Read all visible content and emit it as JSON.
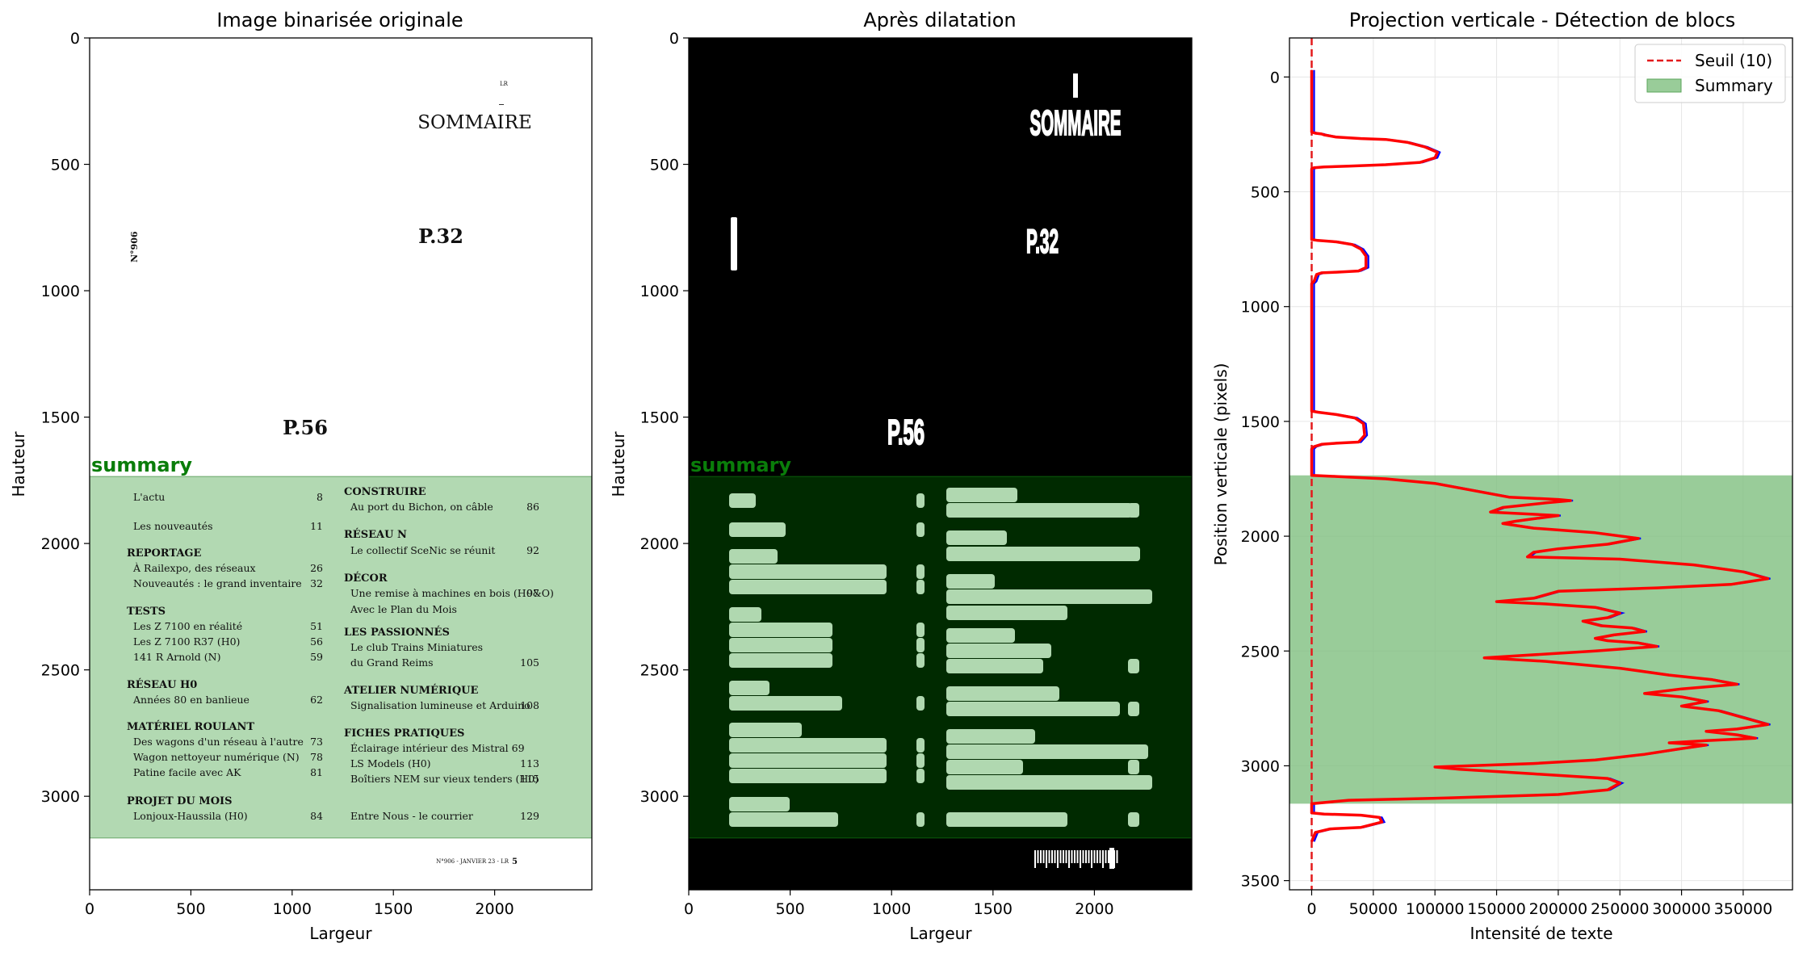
{
  "chart_data": [
    {
      "type": "image",
      "title": "Image binarisée originale",
      "xlabel": "Largeur",
      "ylabel": "Hauteur",
      "xlim": [
        0,
        2480
      ],
      "ylim": [
        3370,
        0
      ],
      "xticks": [
        0,
        500,
        1000,
        1500,
        2000
      ],
      "yticks": [
        0,
        500,
        1000,
        1500,
        2000,
        2500,
        3000
      ],
      "region": {
        "label": "summary",
        "y0": 1735,
        "y1": 3165,
        "color": "#b2d9b2"
      },
      "page_text": {
        "header_small": "LR",
        "sommaire": "SOMMAIRE",
        "issue_vertical": "N°906",
        "p32": "P.32",
        "p56": "P.56",
        "footer": "N°906 - JANVIER 23 - LR",
        "footer_page": "5"
      },
      "toc_left": [
        {
          "text": "L'actu",
          "page": "8",
          "heading": false
        },
        {
          "text": "Les nouveautés",
          "page": "11",
          "heading": false
        },
        {
          "text": "REPORTAGE",
          "page": "",
          "heading": true
        },
        {
          "text": "À Railexpo, des réseaux",
          "page": "26",
          "heading": false
        },
        {
          "text": "Nouveautés : le grand inventaire",
          "page": "32",
          "heading": false
        },
        {
          "text": "TESTS",
          "page": "",
          "heading": true
        },
        {
          "text": "Les Z 7100 en réalité",
          "page": "51",
          "heading": false
        },
        {
          "text": "Les Z 7100 R37 (H0)",
          "page": "56",
          "heading": false
        },
        {
          "text": "141 R Arnold (N)",
          "page": "59",
          "heading": false
        },
        {
          "text": "RÉSEAU H0",
          "page": "",
          "heading": true
        },
        {
          "text": "Années 80 en banlieue",
          "page": "62",
          "heading": false
        },
        {
          "text": "MATÉRIEL ROULANT",
          "page": "",
          "heading": true
        },
        {
          "text": "Des wagons d'un réseau à l'autre",
          "page": "73",
          "heading": false
        },
        {
          "text": "Wagon nettoyeur numérique (N)",
          "page": "78",
          "heading": false
        },
        {
          "text": "Patine facile avec AK",
          "page": "81",
          "heading": false
        },
        {
          "text": "PROJET DU MOIS",
          "page": "",
          "heading": true
        },
        {
          "text": "Lonjoux-Haussila (H0)",
          "page": "84",
          "heading": false
        }
      ],
      "toc_right": [
        {
          "text": "CONSTRUIRE",
          "page": "",
          "heading": true
        },
        {
          "text": "Au port du Bichon, on câble",
          "page": "86",
          "heading": false
        },
        {
          "text": "RÉSEAU N",
          "page": "",
          "heading": true
        },
        {
          "text": "Le collectif SceNic se réunit",
          "page": "92",
          "heading": false
        },
        {
          "text": "DÉCOR",
          "page": "",
          "heading": true
        },
        {
          "text": "Une remise à machines en bois (H0&O)",
          "page": "97",
          "heading": false
        },
        {
          "text": "Avec le Plan du Mois",
          "page": "",
          "heading": false
        },
        {
          "text": "LES PASSIONNÉS",
          "page": "",
          "heading": true
        },
        {
          "text": "Le club Trains Miniatures",
          "page": "",
          "heading": false
        },
        {
          "text": "du Grand Reims",
          "page": "105",
          "heading": false
        },
        {
          "text": "ATELIER NUMÉRIQUE",
          "page": "",
          "heading": true
        },
        {
          "text": "Signalisation lumineuse et Arduino",
          "page": "108",
          "heading": false
        },
        {
          "text": "FICHES PRATIQUES",
          "page": "",
          "heading": true
        },
        {
          "text": "Éclairage intérieur des Mistral 69",
          "page": "",
          "heading": false
        },
        {
          "text": "LS Models (H0)",
          "page": "113",
          "heading": false
        },
        {
          "text": "Boîtiers NEM sur vieux tenders (H0)",
          "page": "115",
          "heading": false
        },
        {
          "text": "Entre Nous - le courrier",
          "page": "129",
          "heading": false
        }
      ]
    },
    {
      "type": "image",
      "title": "Après dilatation",
      "xlabel": "Largeur",
      "ylabel": "Hauteur",
      "xlim": [
        0,
        2480
      ],
      "ylim": [
        3370,
        0
      ],
      "xticks": [
        0,
        500,
        1000,
        1500,
        2000
      ],
      "yticks": [
        0,
        500,
        1000,
        1500,
        2000,
        2500,
        3000
      ],
      "region": {
        "label": "summary",
        "y0": 1735,
        "y1": 3165,
        "color": "#002a00"
      },
      "dilated_text": {
        "sommaire": "SOMMAIRE",
        "p32": "P.32",
        "p56": "P.56"
      }
    },
    {
      "type": "line",
      "title": "Projection verticale - Détection de blocs",
      "xlabel": "Intensité de texte",
      "ylabel": "Position verticale (pixels)",
      "xlim": [
        -18000,
        390000
      ],
      "ylim": [
        3540,
        -170
      ],
      "xticks": [
        0,
        50000,
        100000,
        150000,
        200000,
        250000,
        300000,
        350000
      ],
      "xtick_labels": [
        "0",
        "50000",
        "100000",
        "150000",
        "200000",
        "250000",
        "300000",
        "350000"
      ],
      "yticks": [
        0,
        500,
        1000,
        1500,
        2000,
        2500,
        3000,
        3500
      ],
      "grid": true,
      "legend": "top-right",
      "threshold": {
        "name": "Seuil (10)",
        "value": 10,
        "color": "#e41a1c"
      },
      "block": {
        "name": "Summary",
        "y0": 1735,
        "y1": 3165,
        "color": "#7fbf7f"
      },
      "series": [
        {
          "name": "projection",
          "color": "#ff0000",
          "raw_color": "#0000ff",
          "points": [
            [
              0,
              -30
            ],
            [
              0,
              240
            ],
            [
              3000,
              245
            ],
            [
              8000,
              248
            ],
            [
              10000,
              252
            ],
            [
              20000,
              262
            ],
            [
              40000,
              268
            ],
            [
              60000,
              272
            ],
            [
              78000,
              285
            ],
            [
              92000,
              305
            ],
            [
              102000,
              328
            ],
            [
              100000,
              352
            ],
            [
              88000,
              372
            ],
            [
              60000,
              382
            ],
            [
              30000,
              388
            ],
            [
              10000,
              392
            ],
            [
              2000,
              395
            ],
            [
              0,
              400
            ],
            [
              0,
              708
            ],
            [
              5000,
              712
            ],
            [
              20000,
              718
            ],
            [
              33000,
              730
            ],
            [
              40000,
              750
            ],
            [
              44000,
              780
            ],
            [
              44000,
              830
            ],
            [
              38000,
              845
            ],
            [
              20000,
              850
            ],
            [
              8000,
              853
            ],
            [
              4000,
              860
            ],
            [
              2000,
              890
            ],
            [
              0,
              900
            ],
            [
              0,
              1455
            ],
            [
              5000,
              1460
            ],
            [
              20000,
              1470
            ],
            [
              35000,
              1485
            ],
            [
              42000,
              1510
            ],
            [
              43000,
              1560
            ],
            [
              38000,
              1590
            ],
            [
              20000,
              1595
            ],
            [
              8000,
              1600
            ],
            [
              2000,
              1610
            ],
            [
              0,
              1620
            ],
            [
              0,
              1735
            ],
            [
              20000,
              1740
            ],
            [
              60000,
              1750
            ],
            [
              100000,
              1770
            ],
            [
              130000,
              1800
            ],
            [
              160000,
              1830
            ],
            [
              200000,
              1840
            ],
            [
              210000,
              1845
            ],
            [
              190000,
              1855
            ],
            [
              155000,
              1875
            ],
            [
              145000,
              1895
            ],
            [
              200000,
              1910
            ],
            [
              165000,
              1935
            ],
            [
              155000,
              1945
            ],
            [
              180000,
              1965
            ],
            [
              230000,
              1985
            ],
            [
              265000,
              2010
            ],
            [
              240000,
              2035
            ],
            [
              200000,
              2055
            ],
            [
              180000,
              2070
            ],
            [
              175000,
              2090
            ],
            [
              250000,
              2100
            ],
            [
              310000,
              2125
            ],
            [
              350000,
              2155
            ],
            [
              370000,
              2185
            ],
            [
              340000,
              2210
            ],
            [
              280000,
              2225
            ],
            [
              200000,
              2240
            ],
            [
              180000,
              2270
            ],
            [
              150000,
              2285
            ],
            [
              190000,
              2295
            ],
            [
              230000,
              2310
            ],
            [
              250000,
              2335
            ],
            [
              240000,
              2355
            ],
            [
              220000,
              2370
            ],
            [
              235000,
              2390
            ],
            [
              260000,
              2400
            ],
            [
              270000,
              2415
            ],
            [
              245000,
              2430
            ],
            [
              230000,
              2445
            ],
            [
              240000,
              2455
            ],
            [
              265000,
              2465
            ],
            [
              280000,
              2480
            ],
            [
              230000,
              2500
            ],
            [
              170000,
              2520
            ],
            [
              140000,
              2530
            ],
            [
              190000,
              2545
            ],
            [
              250000,
              2575
            ],
            [
              290000,
              2605
            ],
            [
              325000,
              2625
            ],
            [
              345000,
              2645
            ],
            [
              300000,
              2665
            ],
            [
              270000,
              2685
            ],
            [
              300000,
              2700
            ],
            [
              320000,
              2720
            ],
            [
              300000,
              2740
            ],
            [
              330000,
              2760
            ],
            [
              350000,
              2790
            ],
            [
              370000,
              2820
            ],
            [
              345000,
              2840
            ],
            [
              320000,
              2850
            ],
            [
              345000,
              2865
            ],
            [
              360000,
              2880
            ],
            [
              320000,
              2890
            ],
            [
              290000,
              2900
            ],
            [
              320000,
              2910
            ],
            [
              300000,
              2925
            ],
            [
              270000,
              2950
            ],
            [
              230000,
              2975
            ],
            [
              180000,
              2990
            ],
            [
              100000,
              3005
            ],
            [
              120000,
              3015
            ],
            [
              180000,
              3035
            ],
            [
              240000,
              3055
            ],
            [
              250000,
              3075
            ],
            [
              240000,
              3105
            ],
            [
              200000,
              3125
            ],
            [
              110000,
              3140
            ],
            [
              30000,
              3150
            ],
            [
              0,
              3165
            ],
            [
              0,
              3205
            ],
            [
              10000,
              3210
            ],
            [
              40000,
              3215
            ],
            [
              55000,
              3225
            ],
            [
              57000,
              3245
            ],
            [
              40000,
              3268
            ],
            [
              15000,
              3275
            ],
            [
              3000,
              3290
            ],
            [
              0,
              3330
            ]
          ]
        }
      ]
    }
  ]
}
